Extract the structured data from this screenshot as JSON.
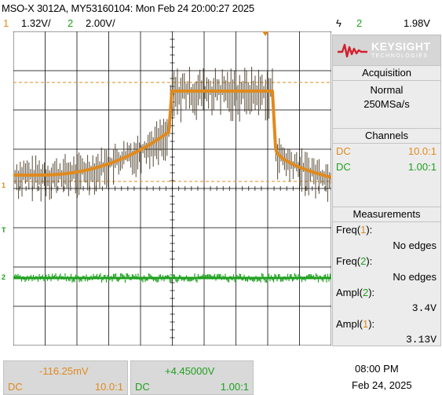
{
  "header": {
    "title": "MSO-X 3012A, MY53160104: Mon Feb 24 20:00:27 2025",
    "ch1_num": "1",
    "ch1_scale": "1.32V/",
    "ch2_num": "2",
    "ch2_scale": "2.00V/",
    "trigger_symbol": "ϟ",
    "trigger_source": "2",
    "trigger_level": "1.98V"
  },
  "brand": {
    "name": "KEYSIGHT",
    "sub": "TECHNOLOGIES",
    "accent": "#d4202c"
  },
  "acquisition": {
    "heading": "Acquisition",
    "mode": "Normal",
    "rate": "250MSa/s"
  },
  "channels": {
    "heading": "Channels",
    "rows": [
      {
        "coupling": "DC",
        "probe": "10.0:1",
        "color": "#e08a1e"
      },
      {
        "coupling": "DC",
        "probe": "1.00:1",
        "color": "#1fa01f"
      }
    ]
  },
  "measurements": {
    "heading": "Measurements",
    "items": [
      {
        "name": "Freq",
        "ch": "1",
        "close": "):",
        "value": "No edges"
      },
      {
        "name": "Freq",
        "ch": "2",
        "close": "):",
        "value": "No edges"
      },
      {
        "name": "Ampl",
        "ch": "2",
        "close": "):",
        "value": "3.4V"
      },
      {
        "name": "Ampl",
        "ch": "1",
        "close": "):",
        "value": "3.13V"
      }
    ]
  },
  "bottom": {
    "ch1_offset": "-116.25mV",
    "ch1_coupling": "DC",
    "ch1_probe": "10.0:1",
    "ch2_offset": "+4.45000V",
    "ch2_coupling": "DC",
    "ch2_probe": "1.00:1",
    "time": "08:00 PM",
    "date": "Feb 24, 2025"
  },
  "markers": {
    "ch1": "1",
    "ch2": "2",
    "trigger": "T"
  },
  "colors": {
    "ch1": "#e08a1e",
    "ch1_noise": "#3a2a12",
    "ch2": "#1fa01f",
    "grid": "#000000",
    "ref_line": "#e08a1e"
  }
}
